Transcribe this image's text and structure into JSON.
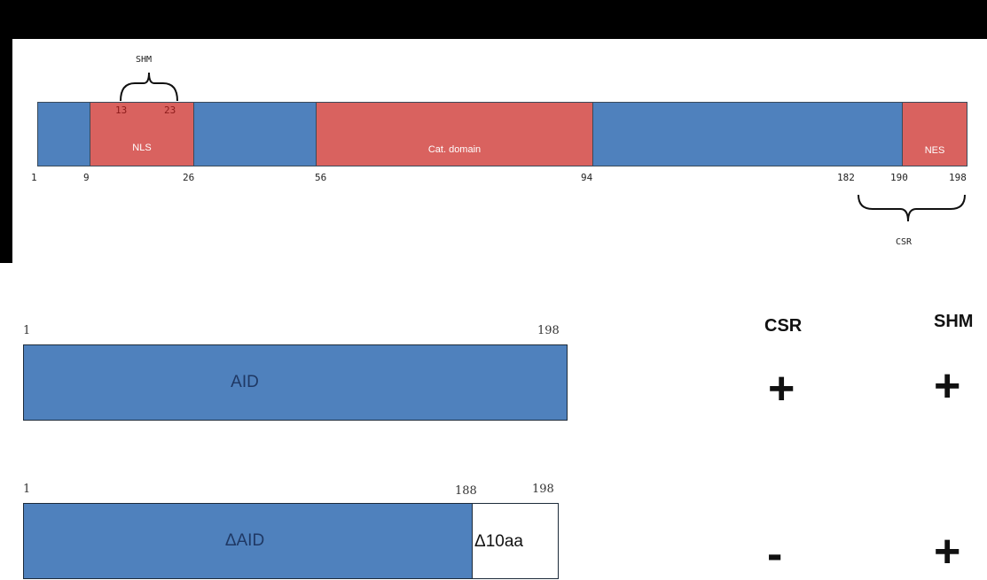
{
  "domain_map": {
    "segments": [
      {
        "label": "",
        "color": "#4f81bd"
      },
      {
        "label": "NLS",
        "color": "#d9625f"
      },
      {
        "label": "",
        "color": "#4f81bd"
      },
      {
        "label": "Cat. domain",
        "color": "#d9625f"
      },
      {
        "label": "",
        "color": "#4f81bd"
      },
      {
        "label": "NES",
        "color": "#d9625f"
      }
    ],
    "ticks": [
      "1",
      "9",
      "26",
      "56",
      "94",
      "182",
      "190",
      "198"
    ],
    "shm_bracket": {
      "label": "SHM",
      "start": "13",
      "end": "23"
    },
    "csr_bracket": {
      "label": "CSR"
    }
  },
  "constructs": {
    "headers": {
      "csr": "CSR",
      "shm": "SHM"
    },
    "rows": [
      {
        "name": "AID",
        "start": "1",
        "end": "198",
        "csr": "+",
        "shm": "+"
      },
      {
        "name": "ΔAID",
        "start": "1",
        "split": "188",
        "end": "198",
        "deletion_label": "Δ10aa",
        "csr": "-",
        "shm": "+"
      }
    ]
  }
}
